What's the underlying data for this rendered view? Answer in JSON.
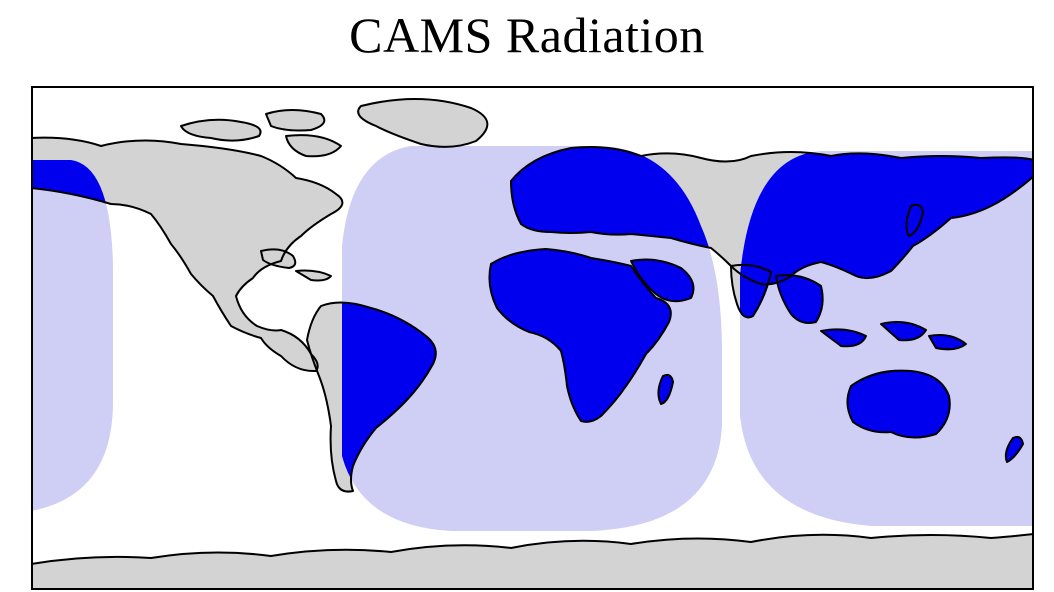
{
  "title": "CAMS Radiation",
  "colors": {
    "ocean": "#ffffff",
    "land": "#d3d3d3",
    "coastline": "#000000",
    "coverage_fill": "#cfcff6",
    "coverage_land": "#0000ee"
  },
  "map": {
    "projection": "plate-carree",
    "coverage_regions": [
      "americas-west-edge",
      "europe-africa",
      "asia-australia"
    ]
  }
}
